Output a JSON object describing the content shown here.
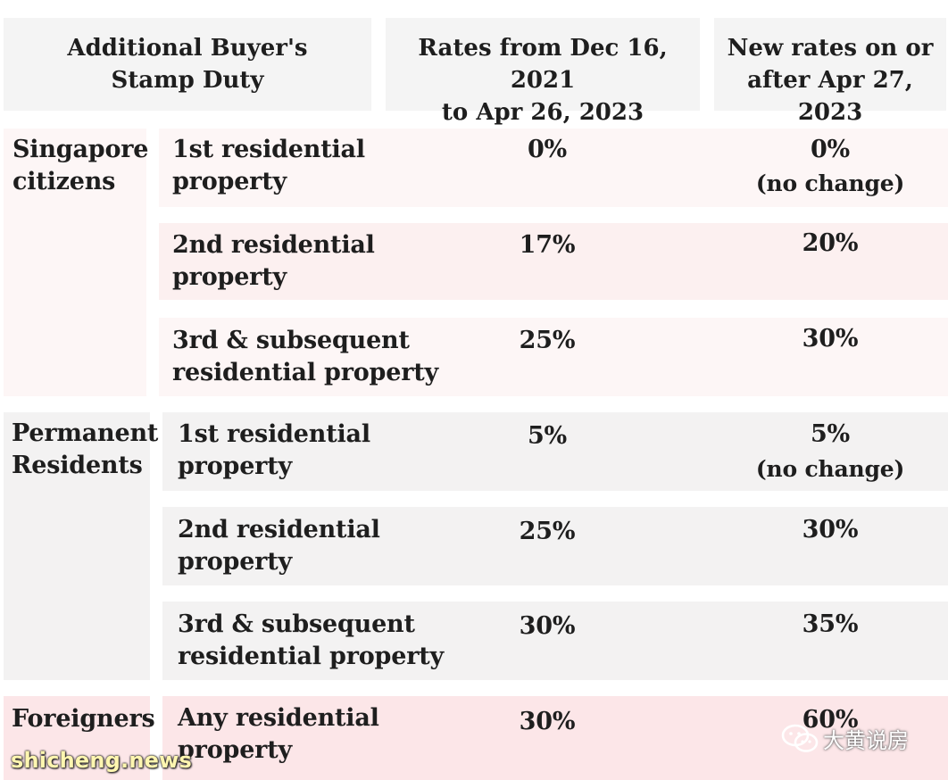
{
  "header": {
    "col1": "Additional Buyer's\nStamp Duty",
    "col2": "Rates from Dec 16, 2021\nto Apr 26, 2023",
    "col3": "New rates on or\nafter Apr 27, 2023"
  },
  "groups": [
    {
      "name": "Singapore\ncitizens",
      "rows": [
        {
          "property": "1st residential\nproperty",
          "old_rate": "0%",
          "new_rate": "0%",
          "note": "(no change)"
        },
        {
          "property": "2nd residential\nproperty",
          "old_rate": "17%",
          "new_rate": "20%"
        },
        {
          "property": "3rd & subsequent\nresidential property",
          "old_rate": "25%",
          "new_rate": "30%"
        }
      ]
    },
    {
      "name": "Permanent\nResidents",
      "rows": [
        {
          "property": "1st residential\nproperty",
          "old_rate": "5%",
          "new_rate": "5%",
          "note": "(no change)"
        },
        {
          "property": "2nd residential\nproperty",
          "old_rate": "25%",
          "new_rate": "30%"
        },
        {
          "property": "3rd & subsequent\nresidential property",
          "old_rate": "30%",
          "new_rate": "35%"
        }
      ]
    },
    {
      "name": "Foreigners",
      "rows": [
        {
          "property": "Any residential\nproperty",
          "old_rate": "30%",
          "new_rate": "60%"
        }
      ]
    }
  ],
  "watermarks": {
    "left": "shicheng.news",
    "right": "大黄说房",
    "right_icon": "wechat-icon"
  },
  "colors": {
    "header_bg": "#f4f4f4",
    "citizens_bg": "#fdf6f6",
    "citizens_row_alt_bg": "#fcf0f0",
    "pr_bg": "#f3f2f2",
    "foreigners_bg": "#fce6e8"
  }
}
